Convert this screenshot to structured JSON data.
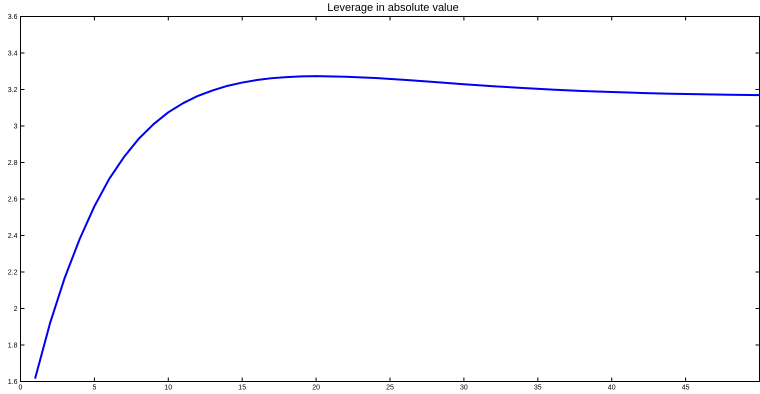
{
  "chart_data": {
    "type": "line",
    "title": "Leverage in absolute value",
    "xlabel": "",
    "ylabel": "",
    "xlim": [
      0,
      50
    ],
    "ylim": [
      1.6,
      3.6
    ],
    "grid": false,
    "x_ticks": [
      0,
      5,
      10,
      15,
      20,
      25,
      30,
      35,
      40,
      45
    ],
    "x_tick_labels": [
      "0",
      "5",
      "10",
      "15",
      "20",
      "25",
      "30",
      "35",
      "40",
      "45"
    ],
    "y_ticks": [
      1.6,
      1.8,
      2.0,
      2.2,
      2.4,
      2.6,
      2.8,
      3.0,
      3.2,
      3.4,
      3.6
    ],
    "y_tick_labels": [
      "1.6",
      "1.8",
      "2",
      "2.2",
      "2.4",
      "2.6",
      "2.8",
      "3",
      "3.2",
      "3.4",
      "3.6"
    ],
    "series": [
      {
        "color": "#0000ee",
        "x": [
          1,
          2,
          3,
          4,
          5,
          6,
          7,
          8,
          9,
          10,
          11,
          12,
          13,
          14,
          15,
          16,
          17,
          18,
          19,
          20,
          22,
          24,
          26,
          28,
          30,
          32,
          34,
          36,
          38,
          40,
          42,
          44,
          46,
          48,
          50
        ],
        "y": [
          1.62,
          1.92,
          2.17,
          2.38,
          2.56,
          2.71,
          2.83,
          2.93,
          3.01,
          3.075,
          3.125,
          3.165,
          3.195,
          3.22,
          3.238,
          3.252,
          3.262,
          3.268,
          3.272,
          3.273,
          3.27,
          3.263,
          3.253,
          3.241,
          3.229,
          3.218,
          3.208,
          3.199,
          3.192,
          3.186,
          3.181,
          3.177,
          3.174,
          3.171,
          3.169
        ]
      }
    ]
  }
}
